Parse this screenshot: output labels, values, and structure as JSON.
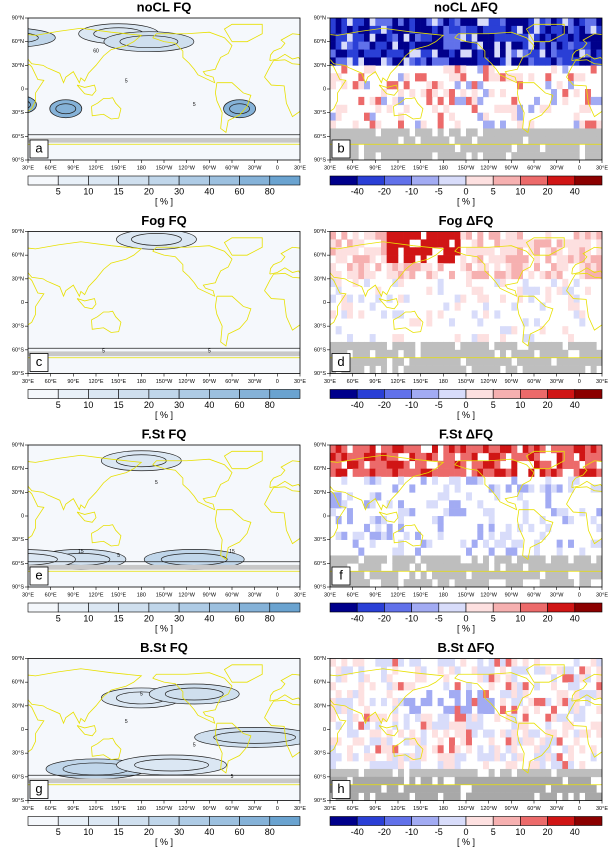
{
  "rows": [
    {
      "left": {
        "title": "noCL FQ",
        "letter": "a"
      },
      "right": {
        "title": "noCL ΔFQ",
        "letter": "b"
      }
    },
    {
      "left": {
        "title": "Fog FQ",
        "letter": "c"
      },
      "right": {
        "title": "Fog ΔFQ",
        "letter": "d"
      }
    },
    {
      "left": {
        "title": "F.St FQ",
        "letter": "e"
      },
      "right": {
        "title": "F.St ΔFQ",
        "letter": "f"
      }
    },
    {
      "left": {
        "title": "B.St FQ",
        "letter": "g"
      },
      "right": {
        "title": "B.St ΔFQ",
        "letter": "h"
      }
    }
  ],
  "contour_labels": [
    [
      "60",
      "5",
      "5"
    ],
    [
      "5",
      "5"
    ],
    [
      "5",
      "5",
      "15",
      "15"
    ],
    [
      "5",
      "5",
      "5",
      "5"
    ]
  ],
  "lon_ticks": [
    "30°E",
    "60°E",
    "90°E",
    "120°E",
    "150°E",
    "180",
    "150°W",
    "120°W",
    "90°W",
    "60°W",
    "30°W",
    "0",
    "30°E"
  ],
  "lat_ticks": [
    "90°N",
    "60°N",
    "30°N",
    "0",
    "30°S",
    "60°S",
    "90°S"
  ],
  "colorbars": {
    "fq": {
      "labels": [
        5,
        10,
        15,
        20,
        30,
        40,
        60,
        80
      ],
      "unit": "[ % ]",
      "colors": [
        "#f5f8fc",
        "#e8f0f8",
        "#dbe7f3",
        "#cfdfee",
        "#c0d6ea",
        "#aecbe5",
        "#9cc0df",
        "#85b2d8",
        "#6aa3d0"
      ]
    },
    "dfq": {
      "labels": [
        -40,
        -20,
        -10,
        -5,
        0,
        5,
        10,
        20,
        40
      ],
      "unit": "[ % ]",
      "colors": [
        "#00008b",
        "#2a3fd6",
        "#6171ea",
        "#a2abf3",
        "#d8dcfa",
        "#fde0e0",
        "#f6b0b0",
        "#ec6a6a",
        "#d01515",
        "#8b0000"
      ]
    }
  }
}
